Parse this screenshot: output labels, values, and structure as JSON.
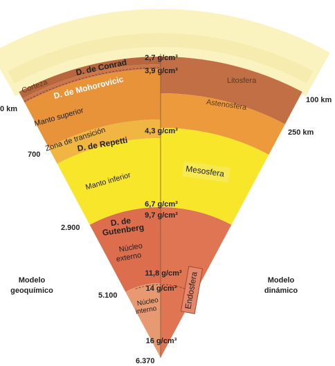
{
  "densities": [
    "2,7 g/cm³",
    "3,9 g/cm³",
    "4,3 g/cm³",
    "6,7 g/cm³",
    "9,7 g/cm³",
    "11,8 g/cm³",
    "14 g/cm³",
    "16 g/cm³"
  ],
  "geochemical_layers": {
    "corteza": "Corteza",
    "conrad": "D. de Conrad",
    "mohorovicic": "D. de Mohorovicic",
    "manto_superior": "Manto superior",
    "zona_transicion": "Zona de transición",
    "repetti": "D. de Repetti",
    "manto_inferior": "Manto inferior",
    "gutenberg": [
      "D. de",
      "Gutenberg"
    ],
    "nucleo_externo": [
      "Núcleo",
      "externo"
    ],
    "nucleo_interno": [
      "Núcleo",
      "interno"
    ]
  },
  "dynamic_layers": {
    "litosfera": "Litosfera",
    "astenosfera": "Astenosfera",
    "mesosfera": "Mesosfera",
    "endosfera": "Endosfera"
  },
  "depths": {
    "left_top": "0 km",
    "right_100": "100 km",
    "right_250": "250 km",
    "d700": "700",
    "d2900": "2.900",
    "d5100": "5.100",
    "d6370": "6.370"
  },
  "models": {
    "left": [
      "Modelo",
      "geoquímico"
    ],
    "right": [
      "Modelo",
      "dinámico"
    ]
  }
}
